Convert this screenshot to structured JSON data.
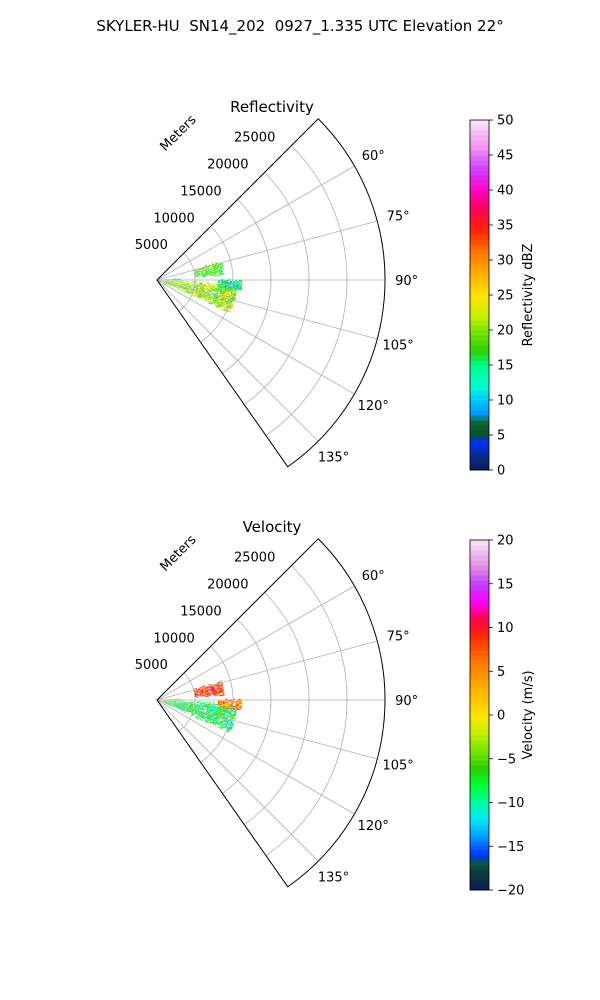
{
  "figure": {
    "suptitle": "SKYLER-HU  SN14_202  0927_1.335 UTC Elevation 22°"
  },
  "chart_data": [
    {
      "type": "heatmap",
      "title": "Reflectivity",
      "projection": "polar sector (ppi)",
      "range_axis_label": "Meters",
      "range_ticks": [
        5000,
        10000,
        15000,
        20000,
        25000
      ],
      "range_tick_labels": [
        "5000",
        "10000",
        "15000",
        "20000",
        "25000"
      ],
      "range_limit": [
        0,
        30000
      ],
      "azimuth_ticks_deg": [
        60,
        75,
        90,
        105,
        120,
        135
      ],
      "azimuth_tick_labels": [
        "60°",
        "75°",
        "90°",
        "105°",
        "120°",
        "135°"
      ],
      "azimuth_range_deg": [
        45,
        145
      ],
      "grid": true,
      "colorbar": {
        "label": "Reflectivity dBZ",
        "range": [
          0,
          50
        ],
        "ticks": [
          0,
          5,
          10,
          15,
          20,
          25,
          30,
          35,
          40,
          45,
          50
        ],
        "tick_labels": [
          "0",
          "5",
          "10",
          "15",
          "20",
          "25",
          "30",
          "35",
          "40",
          "45",
          "50"
        ],
        "stops": [
          [
            0,
            "#0b1b5a"
          ],
          [
            2,
            "#0a2a8a"
          ],
          [
            4,
            "#0030ff"
          ],
          [
            5,
            "#0d4a2a"
          ],
          [
            7,
            "#0a6a3a"
          ],
          [
            8,
            "#0096ff"
          ],
          [
            10,
            "#00c8ff"
          ],
          [
            12,
            "#00ffd0"
          ],
          [
            15,
            "#00ff8a"
          ],
          [
            17,
            "#2cd000"
          ],
          [
            20,
            "#7de600"
          ],
          [
            22,
            "#c8f000"
          ],
          [
            25,
            "#ffe400"
          ],
          [
            28,
            "#ffb000"
          ],
          [
            31,
            "#ff7a00"
          ],
          [
            34,
            "#ff2a00"
          ],
          [
            37,
            "#ff004a"
          ],
          [
            40,
            "#ff00c8"
          ],
          [
            43,
            "#d040ff"
          ],
          [
            46,
            "#f090f0"
          ],
          [
            50,
            "#fbe6fb"
          ]
        ]
      },
      "echo_regions": [
        {
          "az_from": 73,
          "az_to": 86,
          "range_from": 5000,
          "range_to": 8700,
          "value_center": 18,
          "value_spread": 6
        },
        {
          "az_from": 86,
          "az_to": 91,
          "range_from": 600,
          "range_to": 3000,
          "value_center": 15,
          "value_spread": 8
        },
        {
          "az_from": 92,
          "az_to": 114,
          "range_from": 900,
          "range_to": 10500,
          "value_center": 21,
          "value_spread": 7
        },
        {
          "az_from": 89,
          "az_to": 97,
          "range_from": 8000,
          "range_to": 11000,
          "value_center": 14,
          "value_spread": 6
        }
      ]
    },
    {
      "type": "heatmap",
      "title": "Velocity",
      "projection": "polar sector (ppi)",
      "range_axis_label": "Meters",
      "range_ticks": [
        5000,
        10000,
        15000,
        20000,
        25000
      ],
      "range_tick_labels": [
        "5000",
        "10000",
        "15000",
        "20000",
        "25000"
      ],
      "range_limit": [
        0,
        30000
      ],
      "azimuth_ticks_deg": [
        60,
        75,
        90,
        105,
        120,
        135
      ],
      "azimuth_tick_labels": [
        "60°",
        "75°",
        "90°",
        "105°",
        "120°",
        "135°"
      ],
      "azimuth_range_deg": [
        45,
        145
      ],
      "grid": true,
      "colorbar": {
        "label": "Velocity (m/s)",
        "range": [
          -20,
          20
        ],
        "ticks": [
          -20,
          -15,
          -10,
          -5,
          0,
          5,
          10,
          15,
          20
        ],
        "tick_labels": [
          "−20",
          "−15",
          "−10",
          "−5",
          "0",
          "5",
          "10",
          "15",
          "20"
        ],
        "stops": [
          [
            -20,
            "#0b1b5a"
          ],
          [
            -18,
            "#0a3a3a"
          ],
          [
            -17,
            "#0a5a3a"
          ],
          [
            -16,
            "#0030ff"
          ],
          [
            -14,
            "#0096ff"
          ],
          [
            -12,
            "#00e8ff"
          ],
          [
            -10,
            "#00ffa0"
          ],
          [
            -8,
            "#00ff30"
          ],
          [
            -6,
            "#2cd000"
          ],
          [
            -4,
            "#7de600"
          ],
          [
            -2,
            "#c8f000"
          ],
          [
            0,
            "#ffe400"
          ],
          [
            3,
            "#ffb000"
          ],
          [
            6,
            "#ff7a00"
          ],
          [
            9,
            "#ff2a00"
          ],
          [
            11,
            "#ff004a"
          ],
          [
            13,
            "#ff00ff"
          ],
          [
            15,
            "#c040ff"
          ],
          [
            17,
            "#e090e0"
          ],
          [
            20,
            "#fbe6fb"
          ]
        ]
      },
      "echo_regions": [
        {
          "az_from": 73,
          "az_to": 86,
          "range_from": 5000,
          "range_to": 8700,
          "value_center": 8,
          "value_spread": 4
        },
        {
          "az_from": 86,
          "az_to": 91,
          "range_from": 600,
          "range_to": 3000,
          "value_center": 2,
          "value_spread": 4
        },
        {
          "az_from": 92,
          "az_to": 114,
          "range_from": 900,
          "range_to": 10500,
          "value_center": -8,
          "value_spread": 5
        },
        {
          "az_from": 89,
          "az_to": 97,
          "range_from": 8000,
          "range_to": 11000,
          "value_center": 5,
          "value_spread": 4
        }
      ]
    }
  ]
}
